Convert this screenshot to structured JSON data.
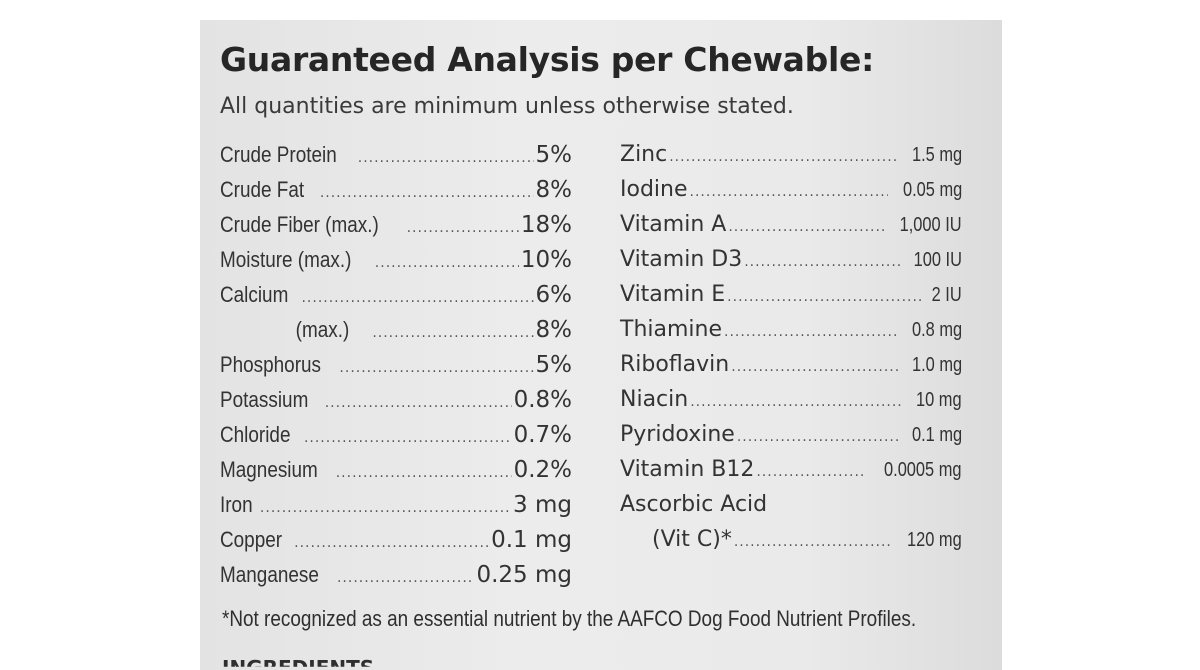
{
  "label": {
    "title": "Guaranteed Analysis per Chewable:",
    "subtitle": "All quantities are minimum unless otherwise stated.",
    "left_column": [
      {
        "name": "Crude Protein",
        "value": "5%"
      },
      {
        "name": "Crude Fat",
        "value": "8%"
      },
      {
        "name": "Crude Fiber (max.)",
        "value": "18%"
      },
      {
        "name": "Moisture (max.)",
        "value": "10%"
      },
      {
        "name": "Calcium",
        "value": "6%"
      },
      {
        "name": "(max.)",
        "value": "8%"
      },
      {
        "name": "Phosphorus",
        "value": "5%"
      },
      {
        "name": "Potassium",
        "value": "0.8%"
      },
      {
        "name": "Chloride",
        "value": "0.7%"
      },
      {
        "name": "Magnesium",
        "value": "0.2%"
      },
      {
        "name": "Iron",
        "value": "3 mg"
      },
      {
        "name": "Copper",
        "value": "0.1 mg"
      },
      {
        "name": "Manganese",
        "value": "0.25 mg"
      }
    ],
    "right_column": [
      {
        "name": "Zinc",
        "value": "1.5 mg"
      },
      {
        "name": "Iodine",
        "value": "0.05 mg"
      },
      {
        "name": "Vitamin A",
        "value": "1,000 IU"
      },
      {
        "name": "Vitamin D3",
        "value": "100 IU"
      },
      {
        "name": "Vitamin E",
        "value": "2 IU"
      },
      {
        "name": "Thiamine",
        "value": "0.8 mg"
      },
      {
        "name": "Riboflavin",
        "value": "1.0 mg"
      },
      {
        "name": "Niacin",
        "value": "10 mg"
      },
      {
        "name": "Pyridoxine",
        "value": "0.1 mg"
      },
      {
        "name": "Vitamin B12",
        "value": "0.0005 mg"
      },
      {
        "name": "Ascorbic Acid",
        "value": ""
      },
      {
        "name": "(Vit C)*",
        "value": "120 mg"
      }
    ],
    "footnote": "*Not recognized as an essential nutrient by the AAFCO Dog Food Nutrient Profiles.",
    "next_heading": "INGREDIENTS"
  }
}
